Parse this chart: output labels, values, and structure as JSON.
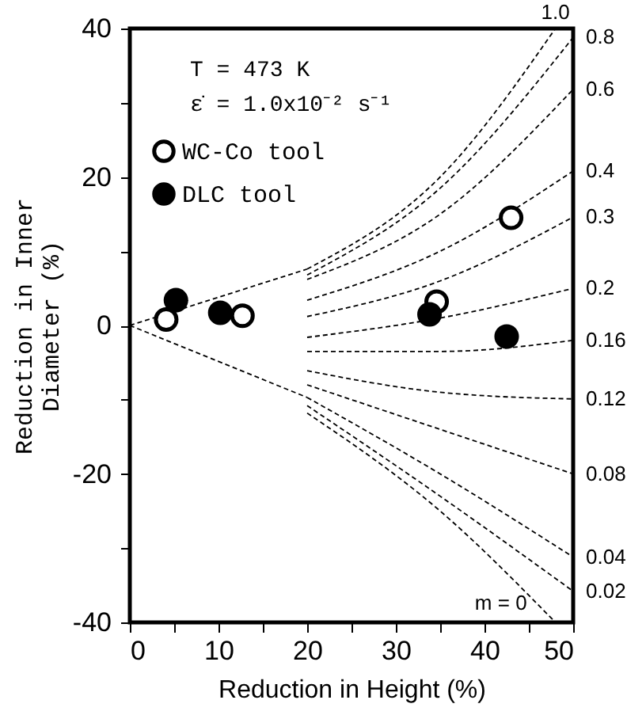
{
  "chart_data": {
    "type": "scatter",
    "xlabel": "Reduction in Height (%)",
    "ylabel": "Reduction in Inner\nDiameter (%)",
    "annotations": [
      "T = 473 K",
      "ε̇ = 1.0x10⁻² s⁻¹"
    ],
    "xlim": [
      0,
      50
    ],
    "xticks": [
      0,
      {
        "value": 5,
        "label": null
      },
      10,
      {
        "value": 15,
        "label": null
      },
      20,
      {
        "value": 25,
        "label": null
      },
      30,
      {
        "value": 35,
        "label": null
      },
      40,
      {
        "value": 45,
        "label": null
      },
      50
    ],
    "ylim": [
      -40,
      40
    ],
    "yticks": [
      -40,
      {
        "value": -30,
        "label": null
      },
      -20,
      {
        "value": -10,
        "label": null
      },
      0,
      {
        "value": 10,
        "label": null
      },
      20,
      {
        "value": 30,
        "label": null
      },
      40
    ],
    "grid": false,
    "legend": "top left",
    "marker": "circle",
    "series": [
      {
        "name": "WC-Co tool",
        "color": "#ffffff",
        "x": [
          4.1,
          12.7,
          34.6,
          43.0
        ],
        "values": [
          0.8,
          1.3,
          3.2,
          14.5
        ]
      },
      {
        "name": "DLC tool",
        "color": "#000000",
        "x": [
          5.2,
          10.2,
          33.8,
          42.5
        ],
        "values": [
          3.4,
          1.7,
          1.5,
          -1.5
        ]
      },
      {
        "type": "line",
        "color": "#000000",
        "line_style": "dashed",
        "marker": "none",
        "x": [
          0,
          20
        ],
        "values": [
          0,
          7.6
        ]
      },
      {
        "type": "line",
        "color": "#000000",
        "line_style": "dashed",
        "marker": "none",
        "x": [
          0,
          20
        ],
        "values": [
          0,
          -9.7
        ]
      },
      {
        "type": "line",
        "name": "1.0",
        "color": "#000000",
        "line_style": "dashed",
        "marker": "none",
        "x": [
          20,
          35,
          48
        ],
        "values": [
          7.6,
          20,
          40
        ]
      },
      {
        "type": "line",
        "name": "0.8",
        "color": "#000000",
        "line_style": "dashed",
        "marker": "none",
        "x": [
          20,
          35,
          50
        ],
        "values": [
          6.8,
          18.5,
          38.8
        ]
      },
      {
        "type": "line",
        "name": "0.6",
        "color": "#000000",
        "line_style": "dashed",
        "marker": "none",
        "x": [
          20,
          35,
          50
        ],
        "values": [
          6.2,
          15,
          31.8
        ]
      },
      {
        "type": "line",
        "name": "0.4",
        "color": "#000000",
        "line_style": "dashed",
        "marker": "none",
        "x": [
          20,
          35,
          50
        ],
        "values": [
          3.4,
          10,
          20.8
        ]
      },
      {
        "type": "line",
        "name": "0.3",
        "color": "#000000",
        "line_style": "dashed",
        "marker": "none",
        "x": [
          20,
          35,
          50
        ],
        "values": [
          1.2,
          6,
          14.6
        ]
      },
      {
        "type": "line",
        "name": "0.2",
        "color": "#000000",
        "line_style": "dashed",
        "marker": "none",
        "x": [
          20,
          35,
          50
        ],
        "values": [
          -1.6,
          1,
          5.0
        ]
      },
      {
        "type": "line",
        "name": "0.16",
        "color": "#000000",
        "line_style": "dashed",
        "marker": "none",
        "x": [
          20,
          35,
          50
        ],
        "values": [
          -3.5,
          -3.5,
          -2.0
        ]
      },
      {
        "type": "line",
        "name": "0.12",
        "color": "#000000",
        "line_style": "dashed",
        "marker": "none",
        "x": [
          20,
          35,
          50
        ],
        "values": [
          -6.1,
          -9,
          -9.9
        ]
      },
      {
        "type": "line",
        "name": "0.08",
        "color": "#000000",
        "line_style": "dashed",
        "marker": "none",
        "x": [
          20,
          35,
          50
        ],
        "values": [
          -8.0,
          -14,
          -20.0
        ]
      },
      {
        "type": "line",
        "name": "0.04",
        "color": "#000000",
        "line_style": "dashed",
        "marker": "none",
        "x": [
          20,
          35,
          50
        ],
        "values": [
          -9.7,
          -20,
          -31.2
        ]
      },
      {
        "type": "line",
        "name": "0.02",
        "color": "#000000",
        "line_style": "dashed",
        "marker": "none",
        "x": [
          20,
          35,
          50
        ],
        "values": [
          -10.8,
          -23,
          -35.8
        ]
      },
      {
        "type": "line",
        "name": "m = 0",
        "color": "#000000",
        "line_style": "dashed",
        "marker": "none",
        "x": [
          20,
          35,
          48
        ],
        "values": [
          -11.8,
          -25,
          -40
        ]
      }
    ]
  }
}
